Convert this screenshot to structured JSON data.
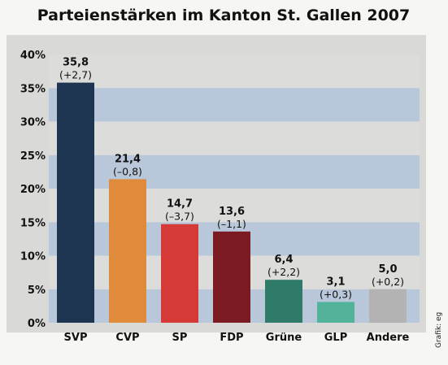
{
  "chart_data": {
    "type": "bar",
    "title": "Parteienstärken im Kanton St. Gallen 2007",
    "categories": [
      "SVP",
      "CVP",
      "SP",
      "FDP",
      "Grüne",
      "GLP",
      "Andere"
    ],
    "values": [
      35.8,
      21.4,
      14.7,
      13.6,
      6.4,
      3.1,
      5.0
    ],
    "value_labels": [
      "35,8",
      "21,4",
      "14,7",
      "13,6",
      "6,4",
      "3,1",
      "5,0"
    ],
    "change_labels": [
      "(+2,7)",
      "(–0,8)",
      "(–3,7)",
      "(–1,1)",
      "(+2,2)",
      "(+0,3)",
      "(+0,2)"
    ],
    "colors": [
      "#1d3550",
      "#e08a3c",
      "#d63a36",
      "#7c1a22",
      "#2f7a68",
      "#52b39a",
      "#b3b3b3"
    ],
    "ylim": [
      0,
      40
    ],
    "yticks": [
      "0%",
      "5%",
      "10%",
      "15%",
      "20%",
      "25%",
      "30%",
      "35%",
      "40%"
    ],
    "grid": "alternating horizontal bands",
    "legend": "none",
    "xlabel": "",
    "ylabel": "",
    "credit": "Grafik: eg"
  }
}
